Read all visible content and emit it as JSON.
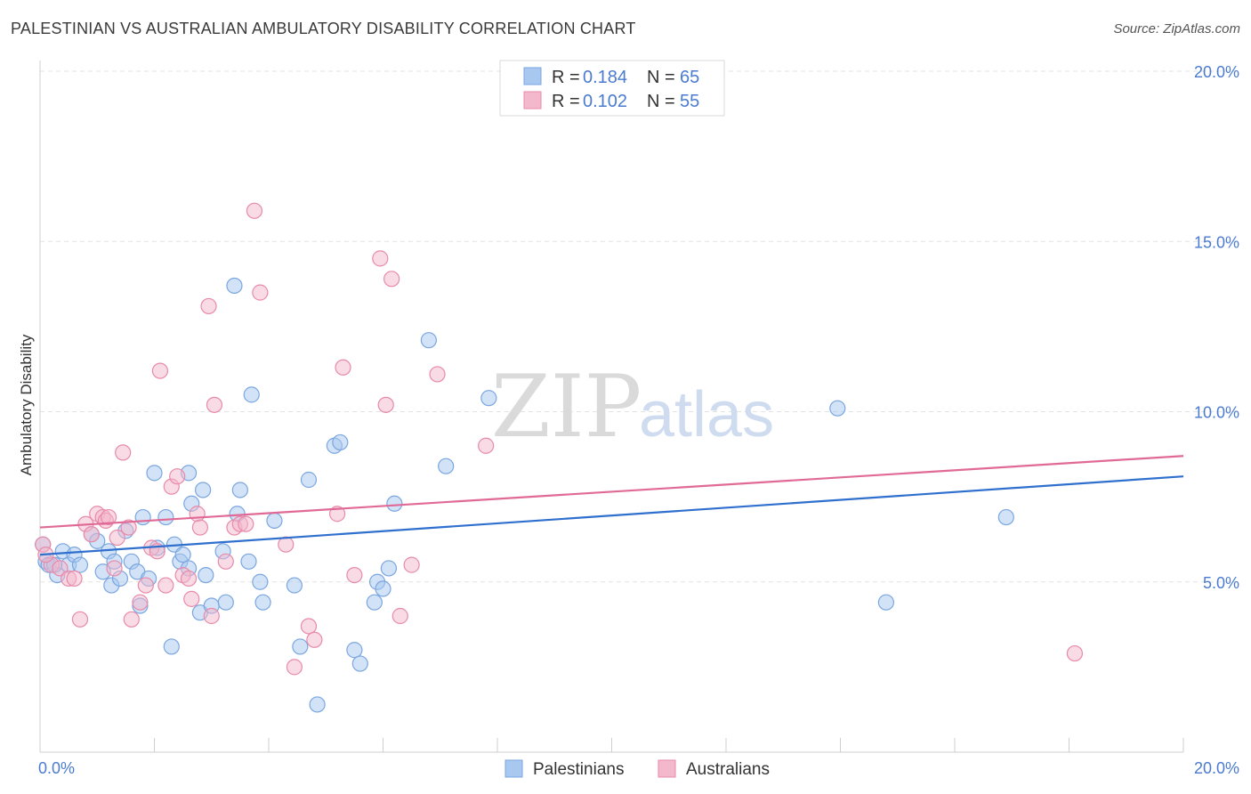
{
  "title": "PALESTINIAN VS AUSTRALIAN AMBULATORY DISABILITY CORRELATION CHART",
  "source": "Source: ZipAtlas.com",
  "watermark": {
    "zip": "ZIP",
    "atlas": "atlas"
  },
  "colors": {
    "blue": "#a8c8f0",
    "blue_stroke": "#7aa6e0",
    "blue_line": "#2f6fce",
    "pink": "#f4b8cc",
    "pink_stroke": "#e88aaa",
    "pink_line": "#e06a95",
    "tick": "#4a7bd0"
  },
  "legend": {
    "rows": [
      {
        "r_label": "R = ",
        "r_value": "0.184",
        "n_label": "N = ",
        "n_value": "65"
      },
      {
        "r_label": "R = ",
        "r_value": "0.102",
        "n_label": "N = ",
        "n_value": "55"
      }
    ]
  },
  "chart_data": {
    "type": "scatter",
    "title": "PALESTINIAN VS AUSTRALIAN AMBULATORY DISABILITY CORRELATION CHART",
    "xlabel": "",
    "ylabel": "Ambulatory Disability",
    "xlim": [
      0,
      20
    ],
    "ylim": [
      0,
      20
    ],
    "x_tick_labels": [
      "0.0%",
      "20.0%"
    ],
    "y_ticks": [
      5,
      10,
      15,
      20
    ],
    "y_tick_labels": [
      "5.0%",
      "10.0%",
      "15.0%",
      "20.0%"
    ],
    "series": [
      {
        "name": "Palestinians",
        "color": "blue",
        "trend": {
          "x": [
            0,
            20
          ],
          "y": [
            5.8,
            8.1
          ]
        },
        "points": [
          [
            0.1,
            5.6
          ],
          [
            0.15,
            5.5
          ],
          [
            0.3,
            5.2
          ],
          [
            0.4,
            5.9
          ],
          [
            0.5,
            5.5
          ],
          [
            0.6,
            5.8
          ],
          [
            0.7,
            5.5
          ],
          [
            0.9,
            6.4
          ],
          [
            1.0,
            6.2
          ],
          [
            1.1,
            5.3
          ],
          [
            1.2,
            5.9
          ],
          [
            1.25,
            4.9
          ],
          [
            1.3,
            5.6
          ],
          [
            1.4,
            5.1
          ],
          [
            1.5,
            6.5
          ],
          [
            1.6,
            5.6
          ],
          [
            1.7,
            5.3
          ],
          [
            1.75,
            4.3
          ],
          [
            1.8,
            6.9
          ],
          [
            1.9,
            5.1
          ],
          [
            2.0,
            8.2
          ],
          [
            2.05,
            6.0
          ],
          [
            2.2,
            6.9
          ],
          [
            2.3,
            3.1
          ],
          [
            2.35,
            6.1
          ],
          [
            2.45,
            5.6
          ],
          [
            2.5,
            5.8
          ],
          [
            2.6,
            8.2
          ],
          [
            2.65,
            7.3
          ],
          [
            2.8,
            4.1
          ],
          [
            2.85,
            7.7
          ],
          [
            2.9,
            5.2
          ],
          [
            3.0,
            4.3
          ],
          [
            3.2,
            5.9
          ],
          [
            3.25,
            4.4
          ],
          [
            3.4,
            13.7
          ],
          [
            3.45,
            7.0
          ],
          [
            3.5,
            7.7
          ],
          [
            3.65,
            5.6
          ],
          [
            3.7,
            10.5
          ],
          [
            3.85,
            5.0
          ],
          [
            3.9,
            4.4
          ],
          [
            4.1,
            6.8
          ],
          [
            4.45,
            4.9
          ],
          [
            4.55,
            3.1
          ],
          [
            4.7,
            8.0
          ],
          [
            4.85,
            1.4
          ],
          [
            5.15,
            9.0
          ],
          [
            5.25,
            9.1
          ],
          [
            5.5,
            3.0
          ],
          [
            5.6,
            2.6
          ],
          [
            5.85,
            4.4
          ],
          [
            5.9,
            5.0
          ],
          [
            6.0,
            4.8
          ],
          [
            6.1,
            5.4
          ],
          [
            6.2,
            7.3
          ],
          [
            6.8,
            12.1
          ],
          [
            7.1,
            8.4
          ],
          [
            7.85,
            10.4
          ],
          [
            13.95,
            10.1
          ],
          [
            14.8,
            4.4
          ],
          [
            16.9,
            6.9
          ],
          [
            0.05,
            6.1
          ],
          [
            0.25,
            5.5
          ],
          [
            2.6,
            5.4
          ]
        ]
      },
      {
        "name": "Australians",
        "color": "pink",
        "trend": {
          "x": [
            0,
            20
          ],
          "y": [
            6.6,
            8.7
          ]
        },
        "points": [
          [
            0.05,
            6.1
          ],
          [
            0.2,
            5.5
          ],
          [
            0.35,
            5.4
          ],
          [
            0.5,
            5.1
          ],
          [
            0.6,
            5.1
          ],
          [
            0.7,
            3.9
          ],
          [
            0.8,
            6.7
          ],
          [
            0.9,
            6.4
          ],
          [
            1.0,
            7.0
          ],
          [
            1.1,
            6.9
          ],
          [
            1.15,
            6.8
          ],
          [
            1.3,
            5.4
          ],
          [
            1.35,
            6.3
          ],
          [
            1.45,
            8.8
          ],
          [
            1.55,
            6.6
          ],
          [
            1.6,
            3.9
          ],
          [
            1.75,
            4.4
          ],
          [
            1.85,
            4.9
          ],
          [
            1.95,
            6.0
          ],
          [
            2.05,
            5.9
          ],
          [
            2.1,
            11.2
          ],
          [
            2.2,
            4.9
          ],
          [
            2.3,
            7.8
          ],
          [
            2.4,
            8.1
          ],
          [
            2.5,
            5.2
          ],
          [
            2.6,
            5.1
          ],
          [
            2.65,
            4.5
          ],
          [
            2.75,
            7.0
          ],
          [
            2.8,
            6.6
          ],
          [
            2.95,
            13.1
          ],
          [
            3.0,
            4.0
          ],
          [
            3.05,
            10.2
          ],
          [
            3.25,
            5.6
          ],
          [
            3.4,
            6.6
          ],
          [
            3.5,
            6.7
          ],
          [
            3.6,
            6.7
          ],
          [
            3.75,
            15.9
          ],
          [
            3.85,
            13.5
          ],
          [
            4.3,
            6.1
          ],
          [
            4.45,
            2.5
          ],
          [
            4.7,
            3.7
          ],
          [
            4.8,
            3.3
          ],
          [
            5.2,
            7.0
          ],
          [
            5.3,
            11.3
          ],
          [
            5.5,
            5.2
          ],
          [
            5.95,
            14.5
          ],
          [
            6.05,
            10.2
          ],
          [
            6.15,
            13.9
          ],
          [
            6.3,
            4.0
          ],
          [
            6.5,
            5.5
          ],
          [
            6.95,
            11.1
          ],
          [
            7.8,
            9.0
          ],
          [
            18.1,
            2.9
          ],
          [
            0.1,
            5.8
          ],
          [
            1.2,
            6.9
          ]
        ]
      }
    ],
    "legend_entries": [
      "Palestinians",
      "Australians"
    ]
  }
}
